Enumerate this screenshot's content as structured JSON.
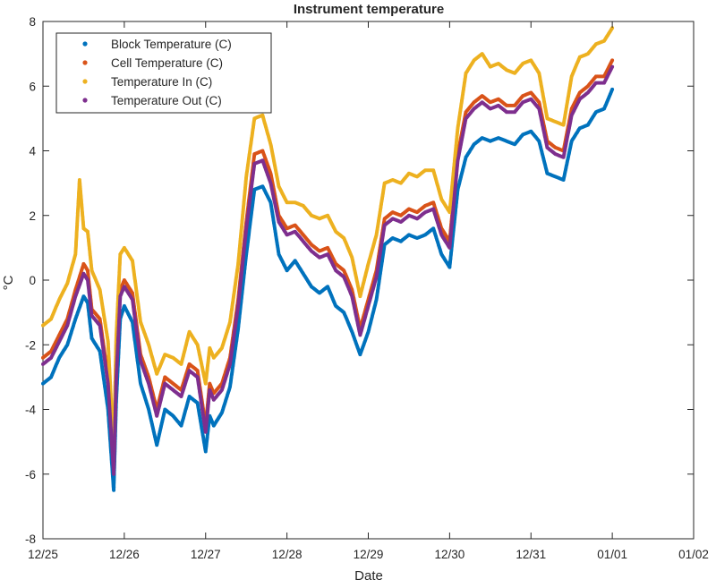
{
  "chart_data": {
    "type": "scatter",
    "title": "Instrument temperature",
    "xlabel": "Date",
    "ylabel": "°C",
    "xlim": [
      "12/25",
      "01/02"
    ],
    "ylim": [
      -8,
      8
    ],
    "x_ticks": [
      "12/25",
      "12/26",
      "12/27",
      "12/28",
      "12/29",
      "12/30",
      "12/31",
      "01/01",
      "01/02"
    ],
    "y_ticks": [
      -8,
      -6,
      -4,
      -2,
      0,
      2,
      4,
      6,
      8
    ],
    "grid": false,
    "legend_position": "top-left",
    "x_time_unit": "days",
    "series": [
      {
        "name": "Block Temperature (C)",
        "color": "#0072BD",
        "x": [
          0.0,
          0.1,
          0.2,
          0.3,
          0.4,
          0.5,
          0.55,
          0.6,
          0.7,
          0.8,
          0.87,
          0.9,
          0.95,
          1.0,
          1.1,
          1.2,
          1.3,
          1.4,
          1.5,
          1.6,
          1.7,
          1.8,
          1.9,
          2.0,
          2.05,
          2.1,
          2.2,
          2.3,
          2.4,
          2.5,
          2.6,
          2.7,
          2.8,
          2.9,
          3.0,
          3.1,
          3.2,
          3.3,
          3.4,
          3.5,
          3.6,
          3.7,
          3.8,
          3.9,
          4.0,
          4.1,
          4.2,
          4.3,
          4.4,
          4.5,
          4.6,
          4.7,
          4.8,
          4.9,
          5.0,
          5.1,
          5.2,
          5.3,
          5.4,
          5.5,
          5.6,
          5.7,
          5.8,
          5.9,
          6.0,
          6.1,
          6.2,
          6.3,
          6.4,
          6.5,
          6.6,
          6.7,
          6.8,
          6.9,
          7.0
        ],
        "y": [
          -3.2,
          -3.0,
          -2.4,
          -2.0,
          -1.2,
          -0.5,
          -0.7,
          -1.8,
          -2.2,
          -4.0,
          -6.5,
          -3.8,
          -1.2,
          -0.8,
          -1.3,
          -3.2,
          -4.0,
          -5.1,
          -4.0,
          -4.2,
          -4.5,
          -3.6,
          -3.8,
          -5.3,
          -4.2,
          -4.5,
          -4.1,
          -3.3,
          -1.5,
          0.8,
          2.8,
          2.9,
          2.4,
          0.8,
          0.3,
          0.6,
          0.2,
          -0.2,
          -0.4,
          -0.2,
          -0.8,
          -1.0,
          -1.6,
          -2.3,
          -1.6,
          -0.6,
          1.1,
          1.3,
          1.2,
          1.4,
          1.3,
          1.4,
          1.6,
          0.8,
          0.4,
          2.8,
          3.8,
          4.2,
          4.4,
          4.3,
          4.4,
          4.3,
          4.2,
          4.5,
          4.6,
          4.3,
          3.3,
          3.2,
          3.1,
          4.3,
          4.7,
          4.8,
          5.2,
          5.3,
          5.9
        ]
      },
      {
        "name": "Cell Temperature (C)",
        "color": "#D95319",
        "x": [
          0.0,
          0.1,
          0.2,
          0.3,
          0.4,
          0.5,
          0.55,
          0.6,
          0.7,
          0.8,
          0.87,
          0.9,
          0.95,
          1.0,
          1.1,
          1.2,
          1.3,
          1.4,
          1.5,
          1.6,
          1.7,
          1.8,
          1.9,
          2.0,
          2.05,
          2.1,
          2.2,
          2.3,
          2.4,
          2.5,
          2.6,
          2.7,
          2.8,
          2.9,
          3.0,
          3.1,
          3.2,
          3.3,
          3.4,
          3.5,
          3.6,
          3.7,
          3.8,
          3.9,
          4.0,
          4.1,
          4.2,
          4.3,
          4.4,
          4.5,
          4.6,
          4.7,
          4.8,
          4.9,
          5.0,
          5.1,
          5.2,
          5.3,
          5.4,
          5.5,
          5.6,
          5.7,
          5.8,
          5.9,
          6.0,
          6.1,
          6.2,
          6.3,
          6.4,
          6.5,
          6.6,
          6.7,
          6.8,
          6.9,
          7.0
        ],
        "y": [
          -2.4,
          -2.2,
          -1.7,
          -1.2,
          -0.3,
          0.5,
          0.3,
          -0.9,
          -1.2,
          -3.0,
          -5.8,
          -2.9,
          -0.3,
          0.0,
          -0.4,
          -2.3,
          -3.0,
          -4.0,
          -3.0,
          -3.2,
          -3.4,
          -2.6,
          -2.8,
          -4.5,
          -3.2,
          -3.5,
          -3.2,
          -2.4,
          -0.6,
          1.8,
          3.9,
          4.0,
          3.3,
          2.0,
          1.6,
          1.7,
          1.4,
          1.1,
          0.9,
          1.0,
          0.5,
          0.3,
          -0.3,
          -1.5,
          -0.6,
          0.3,
          1.9,
          2.1,
          2.0,
          2.2,
          2.1,
          2.3,
          2.4,
          1.6,
          1.2,
          3.9,
          5.2,
          5.5,
          5.7,
          5.5,
          5.6,
          5.4,
          5.4,
          5.7,
          5.8,
          5.5,
          4.3,
          4.1,
          4.0,
          5.3,
          5.8,
          6.0,
          6.3,
          6.3,
          6.8
        ]
      },
      {
        "name": "Temperature In (C)",
        "color": "#EDB120",
        "x": [
          0.0,
          0.1,
          0.2,
          0.3,
          0.4,
          0.45,
          0.5,
          0.55,
          0.6,
          0.7,
          0.8,
          0.87,
          0.9,
          0.95,
          1.0,
          1.1,
          1.2,
          1.3,
          1.4,
          1.5,
          1.6,
          1.7,
          1.8,
          1.9,
          2.0,
          2.05,
          2.1,
          2.2,
          2.3,
          2.4,
          2.5,
          2.6,
          2.7,
          2.8,
          2.9,
          3.0,
          3.1,
          3.2,
          3.3,
          3.4,
          3.5,
          3.6,
          3.7,
          3.8,
          3.9,
          4.0,
          4.1,
          4.2,
          4.3,
          4.4,
          4.5,
          4.6,
          4.7,
          4.8,
          4.9,
          5.0,
          5.1,
          5.2,
          5.3,
          5.4,
          5.5,
          5.6,
          5.7,
          5.8,
          5.9,
          6.0,
          6.1,
          6.2,
          6.3,
          6.4,
          6.5,
          6.6,
          6.7,
          6.8,
          6.9,
          7.0
        ],
        "y": [
          -1.4,
          -1.2,
          -0.6,
          -0.1,
          0.8,
          3.1,
          1.6,
          1.5,
          0.3,
          -0.3,
          -1.9,
          -5.3,
          -1.8,
          0.8,
          1.0,
          0.6,
          -1.3,
          -2.0,
          -2.9,
          -2.3,
          -2.4,
          -2.6,
          -1.6,
          -2.0,
          -3.2,
          -2.1,
          -2.4,
          -2.1,
          -1.3,
          0.5,
          3.2,
          5.0,
          5.1,
          4.2,
          2.9,
          2.4,
          2.4,
          2.3,
          2.0,
          1.9,
          2.0,
          1.5,
          1.3,
          0.7,
          -0.5,
          0.5,
          1.4,
          3.0,
          3.1,
          3.0,
          3.3,
          3.2,
          3.4,
          3.4,
          2.5,
          2.1,
          4.7,
          6.4,
          6.8,
          7.0,
          6.6,
          6.7,
          6.5,
          6.4,
          6.7,
          6.8,
          6.4,
          5.0,
          4.9,
          4.8,
          6.3,
          6.9,
          7.0,
          7.3,
          7.4,
          7.8
        ]
      },
      {
        "name": "Temperature Out (C)",
        "color": "#7E2F8E",
        "x": [
          0.0,
          0.1,
          0.2,
          0.3,
          0.4,
          0.5,
          0.55,
          0.6,
          0.7,
          0.8,
          0.87,
          0.9,
          0.95,
          1.0,
          1.1,
          1.2,
          1.3,
          1.4,
          1.5,
          1.6,
          1.7,
          1.8,
          1.9,
          2.0,
          2.05,
          2.1,
          2.2,
          2.3,
          2.4,
          2.5,
          2.6,
          2.7,
          2.8,
          2.9,
          3.0,
          3.1,
          3.2,
          3.3,
          3.4,
          3.5,
          3.6,
          3.7,
          3.8,
          3.9,
          4.0,
          4.1,
          4.2,
          4.3,
          4.4,
          4.5,
          4.6,
          4.7,
          4.8,
          4.9,
          5.0,
          5.1,
          5.2,
          5.3,
          5.4,
          5.5,
          5.6,
          5.7,
          5.8,
          5.9,
          6.0,
          6.1,
          6.2,
          6.3,
          6.4,
          6.5,
          6.6,
          6.7,
          6.8,
          6.9,
          7.0
        ],
        "y": [
          -2.6,
          -2.4,
          -1.9,
          -1.4,
          -0.5,
          0.2,
          0.0,
          -1.1,
          -1.4,
          -3.2,
          -6.0,
          -3.1,
          -0.5,
          -0.2,
          -0.6,
          -2.5,
          -3.2,
          -4.2,
          -3.2,
          -3.4,
          -3.6,
          -2.8,
          -3.0,
          -4.7,
          -3.4,
          -3.7,
          -3.4,
          -2.6,
          -0.8,
          1.6,
          3.6,
          3.7,
          3.0,
          1.8,
          1.4,
          1.5,
          1.2,
          0.9,
          0.7,
          0.8,
          0.3,
          0.1,
          -0.5,
          -1.7,
          -0.8,
          0.1,
          1.7,
          1.9,
          1.8,
          2.0,
          1.9,
          2.1,
          2.2,
          1.4,
          1.0,
          3.7,
          5.0,
          5.3,
          5.5,
          5.3,
          5.4,
          5.2,
          5.2,
          5.5,
          5.6,
          5.3,
          4.1,
          3.9,
          3.8,
          5.1,
          5.6,
          5.8,
          6.1,
          6.1,
          6.6
        ]
      }
    ]
  }
}
